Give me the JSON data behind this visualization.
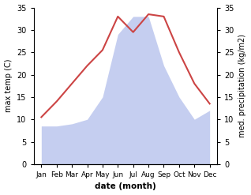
{
  "months": [
    "Jan",
    "Feb",
    "Mar",
    "Apr",
    "May",
    "Jun",
    "Jul",
    "Aug",
    "Sep",
    "Oct",
    "Nov",
    "Dec"
  ],
  "temp": [
    10.5,
    14.0,
    18.0,
    22.0,
    25.5,
    33.0,
    29.5,
    33.5,
    33.0,
    25.0,
    18.0,
    13.5
  ],
  "precip": [
    8.5,
    8.5,
    9.0,
    10.0,
    15.0,
    29.0,
    33.0,
    33.0,
    22.0,
    15.0,
    10.0,
    12.0
  ],
  "temp_color": "#cc4444",
  "precip_color": "#c5cef0",
  "ylim": [
    0,
    35
  ],
  "yticks": [
    0,
    5,
    10,
    15,
    20,
    25,
    30,
    35
  ],
  "ylabel_left": "max temp (C)",
  "ylabel_right": "med. precipitation (kg/m2)",
  "xlabel": "date (month)",
  "bg_color": "#ffffff"
}
